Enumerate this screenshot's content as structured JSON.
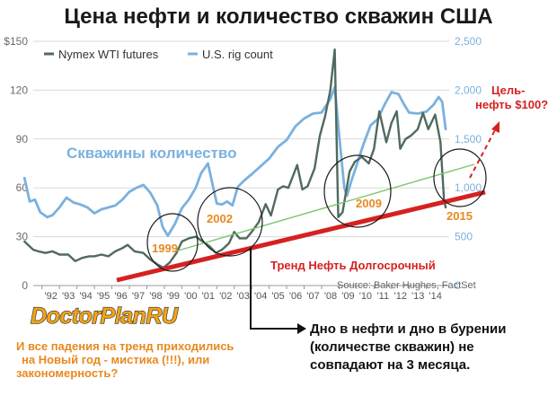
{
  "title": "Цена нефти и количество скважин США",
  "chart_data": {
    "type": "line",
    "x_range": [
      1991.5,
      2015.3
    ],
    "x_ticks": [
      "'92",
      "'93",
      "'94",
      "'95",
      "'96",
      "'97",
      "'98",
      "'99",
      "'00",
      "'01",
      "'02",
      "'03",
      "'04",
      "'05",
      "'06",
      "'07",
      "'08",
      "'09",
      "'10",
      "'11",
      "'12",
      "'13",
      "'14"
    ],
    "y_left": {
      "range": [
        0,
        150
      ],
      "ticks": [
        "0",
        "30",
        "60",
        "90",
        "120",
        "$150"
      ]
    },
    "y_right": {
      "range": [
        0,
        2500
      ],
      "ticks": [
        "0",
        "500",
        "1,000",
        "1,500",
        "2,000",
        "2,500"
      ]
    },
    "grid": true,
    "legend_placement": "top-left",
    "series": [
      {
        "name": "Nymex WTI futures",
        "axis": "left",
        "color": "#4f6a5f",
        "x": [
          1991.0,
          1991.5,
          1991.8,
          1992.2,
          1992.6,
          1993.0,
          1993.5,
          1993.9,
          1994.3,
          1994.7,
          1995.0,
          1995.4,
          1995.8,
          1996.2,
          1996.6,
          1996.9,
          1997.3,
          1997.8,
          1998.2,
          1998.6,
          1998.95,
          1999.3,
          1999.7,
          2000.0,
          2000.4,
          2000.8,
          2001.2,
          2001.6,
          2001.95,
          2002.3,
          2002.7,
          2003.0,
          2003.3,
          2003.7,
          2004.0,
          2004.4,
          2004.8,
          2005.1,
          2005.5,
          2005.8,
          2006.1,
          2006.6,
          2006.9,
          2007.2,
          2007.6,
          2007.9,
          2008.2,
          2008.5,
          2008.75,
          2008.95,
          2009.2,
          2009.6,
          2009.9,
          2010.3,
          2010.7,
          2011.0,
          2011.3,
          2011.7,
          2012.0,
          2012.3,
          2012.5,
          2012.8,
          2013.1,
          2013.5,
          2013.8,
          2014.1,
          2014.5,
          2014.8,
          2015.0,
          2015.1
        ],
        "values": [
          27,
          22,
          21,
          20,
          21,
          19,
          19,
          15,
          17,
          18,
          18,
          19,
          18,
          21,
          23,
          25,
          21,
          20,
          16,
          13,
          11,
          14,
          20,
          27,
          29,
          30,
          27,
          24,
          20,
          22,
          26,
          33,
          29,
          29,
          33,
          39,
          50,
          43,
          59,
          61,
          60,
          74,
          59,
          61,
          72,
          92,
          104,
          120,
          145,
          42,
          45,
          70,
          76,
          79,
          75,
          84,
          107,
          88,
          100,
          107,
          84,
          90,
          92,
          96,
          106,
          96,
          105,
          88,
          53,
          48
        ]
      },
      {
        "name": "U.S. rig count",
        "axis": "right",
        "color": "#7bb1de",
        "x": [
          1991.0,
          1991.3,
          1991.6,
          1991.9,
          1992.3,
          1992.6,
          1993.0,
          1993.4,
          1993.8,
          1994.2,
          1994.6,
          1995.0,
          1995.4,
          1995.8,
          1996.2,
          1996.6,
          1997.0,
          1997.4,
          1997.8,
          1998.2,
          1998.6,
          1998.9,
          1999.2,
          1999.6,
          2000.0,
          2000.4,
          2000.8,
          2001.1,
          2001.5,
          2001.8,
          2002.0,
          2002.3,
          2002.6,
          2002.9,
          2003.2,
          2003.6,
          2004.0,
          2004.5,
          2005.0,
          2005.5,
          2006.0,
          2006.5,
          2007.0,
          2007.5,
          2008.0,
          2008.5,
          2008.75,
          2009.0,
          2009.3,
          2009.45,
          2009.7,
          2010.0,
          2010.4,
          2010.8,
          2011.2,
          2011.6,
          2012.0,
          2012.4,
          2012.7,
          2013.0,
          2013.5,
          2014.0,
          2014.4,
          2014.7,
          2014.9,
          2015.1
        ],
        "values": [
          1100,
          860,
          880,
          750,
          700,
          720,
          800,
          900,
          850,
          830,
          800,
          740,
          780,
          800,
          820,
          880,
          960,
          1000,
          1030,
          950,
          820,
          600,
          510,
          630,
          790,
          880,
          1000,
          1150,
          1250,
          1000,
          840,
          830,
          860,
          820,
          1010,
          1080,
          1140,
          1220,
          1300,
          1420,
          1490,
          1630,
          1710,
          1760,
          1770,
          1910,
          2030,
          1550,
          1000,
          920,
          1070,
          1230,
          1450,
          1640,
          1700,
          1850,
          1980,
          1960,
          1860,
          1770,
          1760,
          1780,
          1850,
          1930,
          1880,
          1600
        ]
      }
    ],
    "annotations": {
      "rig_label": "Скважины количество",
      "year_labels": [
        "1999",
        "2002",
        "2009",
        "2015"
      ],
      "trend_label": "Тренд Нефть Долгосрочный",
      "target_label": [
        "Цель-",
        "нефть $100?"
      ],
      "source": "Source: Baker Hughes, FactSet"
    }
  },
  "page_text": {
    "logo": "DoctorPlanRU",
    "note_lines": [
      "И все падения на тренд приходились",
      "на Новый год - мистика (!!!), или",
      "закономерность?"
    ],
    "callout_lines": [
      "Дно в нефти и дно в бурении",
      "(количестве скважин) не",
      "совпадают на 3 месяца."
    ]
  },
  "colors": {
    "wti": "#4f6a5f",
    "rigs": "#7bb1de",
    "trend_line": "#d62121",
    "green_trend": "#7dc46f",
    "year_labels": "#e8891f",
    "logo": "#f1a418"
  }
}
